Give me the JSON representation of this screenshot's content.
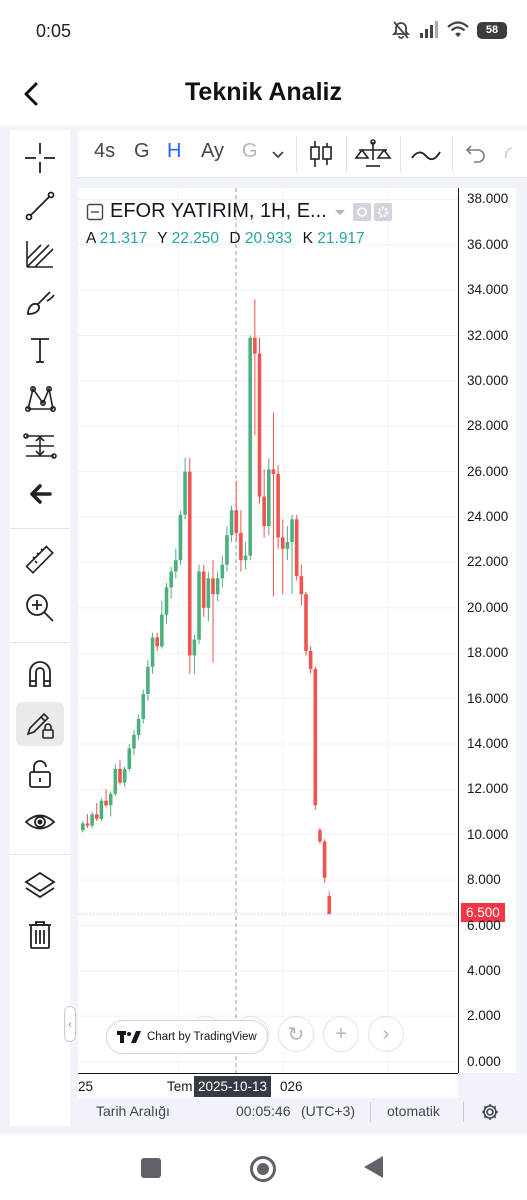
{
  "status_bar": {
    "time": "0:05",
    "battery": "58"
  },
  "header": {
    "title": "Teknik Analiz"
  },
  "top_toolbar": {
    "timeframes": [
      {
        "label": "4s",
        "state": "normal"
      },
      {
        "label": "G",
        "state": "normal"
      },
      {
        "label": "H",
        "state": "active"
      },
      {
        "label": "Ay",
        "state": "normal"
      },
      {
        "label": "G",
        "state": "disabled"
      }
    ]
  },
  "legend": {
    "title": "EFOR YATIRIM, 1H, E...",
    "open_label": "A",
    "open": "21.317",
    "high_label": "Y",
    "high": "22.250",
    "low_label": "D",
    "low": "20.933",
    "close_label": "K",
    "close": "21.917"
  },
  "price_axis": {
    "labels": [
      "38.000",
      "36.000",
      "34.000",
      "32.000",
      "30.000",
      "28.000",
      "26.000",
      "24.000",
      "22.000",
      "20.000",
      "18.000",
      "16.000",
      "14.000",
      "12.000",
      "10.000",
      "8.000",
      "6.000",
      "4.000",
      "2.000",
      "0.000"
    ],
    "last_price": "6.500"
  },
  "time_axis": {
    "left_label": "25",
    "mid_label": "Tem",
    "crosshair_label": "2025-10-13",
    "right_label": "026"
  },
  "attribution": {
    "text": "Chart by TradingView"
  },
  "bottom_bar": {
    "range_label": "Tarih Aralığı",
    "clock": "00:05:46",
    "timezone": "(UTC+3)",
    "scale": "otomatik"
  },
  "colors": {
    "up": "#4caf7d",
    "down": "#ef5350",
    "accent": "#2962ff",
    "last_price_bg": "#f23645"
  },
  "chart_data": {
    "type": "candlestick",
    "title": "EFOR YATIRIM, 1H, E...",
    "ylim": [
      -0.5,
      38.5
    ],
    "y_ticks": [
      0,
      2,
      4,
      6,
      8,
      10,
      12,
      14,
      16,
      18,
      20,
      22,
      24,
      26,
      28,
      30,
      32,
      34,
      36,
      38
    ],
    "x_ticks": [
      "25",
      "Tem",
      "026"
    ],
    "crosshair_x": "2025-10-13",
    "last_price": 6.5,
    "candles": [
      [
        10.2,
        10.6,
        10.1,
        10.5
      ],
      [
        10.5,
        10.9,
        10.3,
        10.4
      ],
      [
        10.4,
        11.0,
        10.3,
        10.9
      ],
      [
        10.9,
        11.4,
        10.6,
        10.7
      ],
      [
        10.7,
        11.6,
        10.6,
        11.5
      ],
      [
        11.5,
        12.0,
        11.2,
        11.3
      ],
      [
        11.3,
        11.9,
        10.8,
        11.8
      ],
      [
        11.8,
        13.1,
        11.7,
        12.9
      ],
      [
        12.9,
        13.3,
        12.2,
        12.3
      ],
      [
        12.3,
        13.0,
        12.1,
        12.9
      ],
      [
        12.9,
        14.0,
        12.8,
        13.8
      ],
      [
        13.8,
        14.6,
        13.5,
        14.4
      ],
      [
        14.4,
        15.3,
        14.2,
        15.1
      ],
      [
        15.1,
        16.4,
        14.9,
        16.2
      ],
      [
        16.2,
        17.7,
        15.9,
        17.4
      ],
      [
        17.4,
        18.9,
        17.1,
        18.7
      ],
      [
        18.7,
        18.9,
        18.1,
        18.3
      ],
      [
        18.3,
        20.3,
        18.2,
        19.7
      ],
      [
        19.7,
        21.1,
        19.3,
        20.9
      ],
      [
        20.9,
        21.8,
        20.4,
        21.6
      ],
      [
        21.6,
        22.6,
        21.3,
        22.1
      ],
      [
        22.1,
        24.3,
        21.9,
        24.1
      ],
      [
        24.1,
        26.6,
        23.9,
        26.0
      ],
      [
        26.0,
        26.6,
        17.1,
        17.9
      ],
      [
        17.9,
        18.8,
        17.1,
        18.6
      ],
      [
        18.6,
        21.9,
        18.4,
        21.6
      ],
      [
        21.6,
        21.9,
        19.6,
        20.0
      ],
      [
        20.0,
        21.6,
        19.4,
        21.3
      ],
      [
        21.3,
        22.1,
        17.6,
        20.6
      ],
      [
        20.6,
        21.6,
        20.3,
        21.3
      ],
      [
        21.3,
        22.3,
        20.9,
        21.9
      ],
      [
        21.9,
        23.6,
        21.6,
        23.2
      ],
      [
        23.2,
        24.5,
        22.9,
        24.3
      ],
      [
        24.3,
        25.6,
        22.9,
        23.3
      ],
      [
        23.3,
        24.3,
        21.6,
        22.1
      ],
      [
        22.1,
        22.9,
        21.7,
        22.3
      ],
      [
        22.3,
        32.0,
        22.1,
        31.9
      ],
      [
        31.9,
        33.6,
        27.6,
        31.2
      ],
      [
        31.2,
        31.9,
        24.6,
        24.9
      ],
      [
        24.9,
        26.1,
        23.1,
        23.6
      ],
      [
        23.6,
        26.6,
        23.2,
        26.1
      ],
      [
        26.1,
        28.6,
        20.5,
        25.9
      ],
      [
        25.9,
        26.3,
        22.6,
        23.1
      ],
      [
        23.1,
        23.9,
        20.6,
        22.6
      ],
      [
        22.6,
        23.6,
        22.1,
        22.9
      ],
      [
        22.9,
        24.1,
        20.6,
        23.9
      ],
      [
        23.9,
        24.1,
        21.2,
        21.4
      ],
      [
        21.4,
        21.9,
        20.1,
        20.6
      ],
      [
        20.6,
        20.7,
        17.9,
        18.1
      ],
      [
        18.1,
        18.3,
        17.1,
        17.3
      ],
      [
        17.3,
        17.4,
        11.1,
        11.3
      ],
      [
        10.2,
        10.3,
        9.6,
        9.7
      ],
      [
        9.7,
        9.8,
        7.9,
        8.1
      ],
      [
        7.3,
        7.5,
        6.5,
        6.5
      ]
    ]
  }
}
